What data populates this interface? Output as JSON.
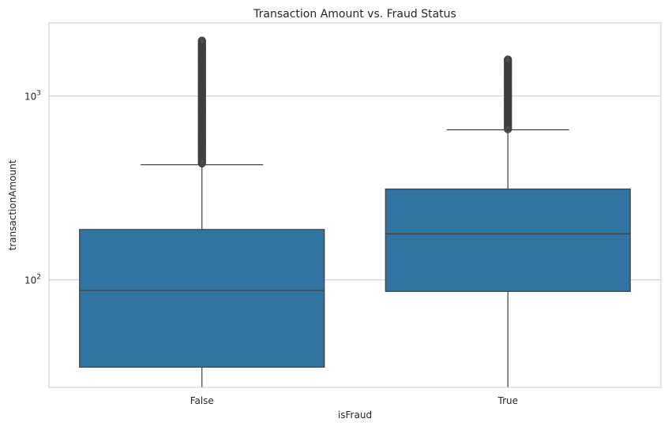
{
  "chart_data": {
    "type": "box",
    "title": "Transaction Amount vs. Fraud Status",
    "xlabel": "isFraud",
    "ylabel": "transactionAmount",
    "y_scale": "log",
    "ylim": [
      26,
      2500
    ],
    "grid": true,
    "categories": [
      "False",
      "True"
    ],
    "y_ticks": [
      {
        "value": 100,
        "base": "10",
        "exp": "2"
      },
      {
        "value": 1000,
        "base": "10",
        "exp": "3"
      }
    ],
    "boxes": [
      {
        "category": "False",
        "whisker_low": 26,
        "q1": 33.5,
        "median": 87.5,
        "q3": 188,
        "whisker_high": 423,
        "outliers_range": [
          430,
          2000
        ]
      },
      {
        "category": "True",
        "whisker_low": 26,
        "q1": 86.5,
        "median": 178,
        "q3": 312,
        "whisker_high": 655,
        "outliers_range": [
          660,
          1580
        ]
      }
    ],
    "colors": {
      "box_fill": "#3274a1",
      "line": "#3f3f3f",
      "grid": "#cccccc",
      "axes_edge": "#cccccc",
      "text": "#262626"
    }
  }
}
